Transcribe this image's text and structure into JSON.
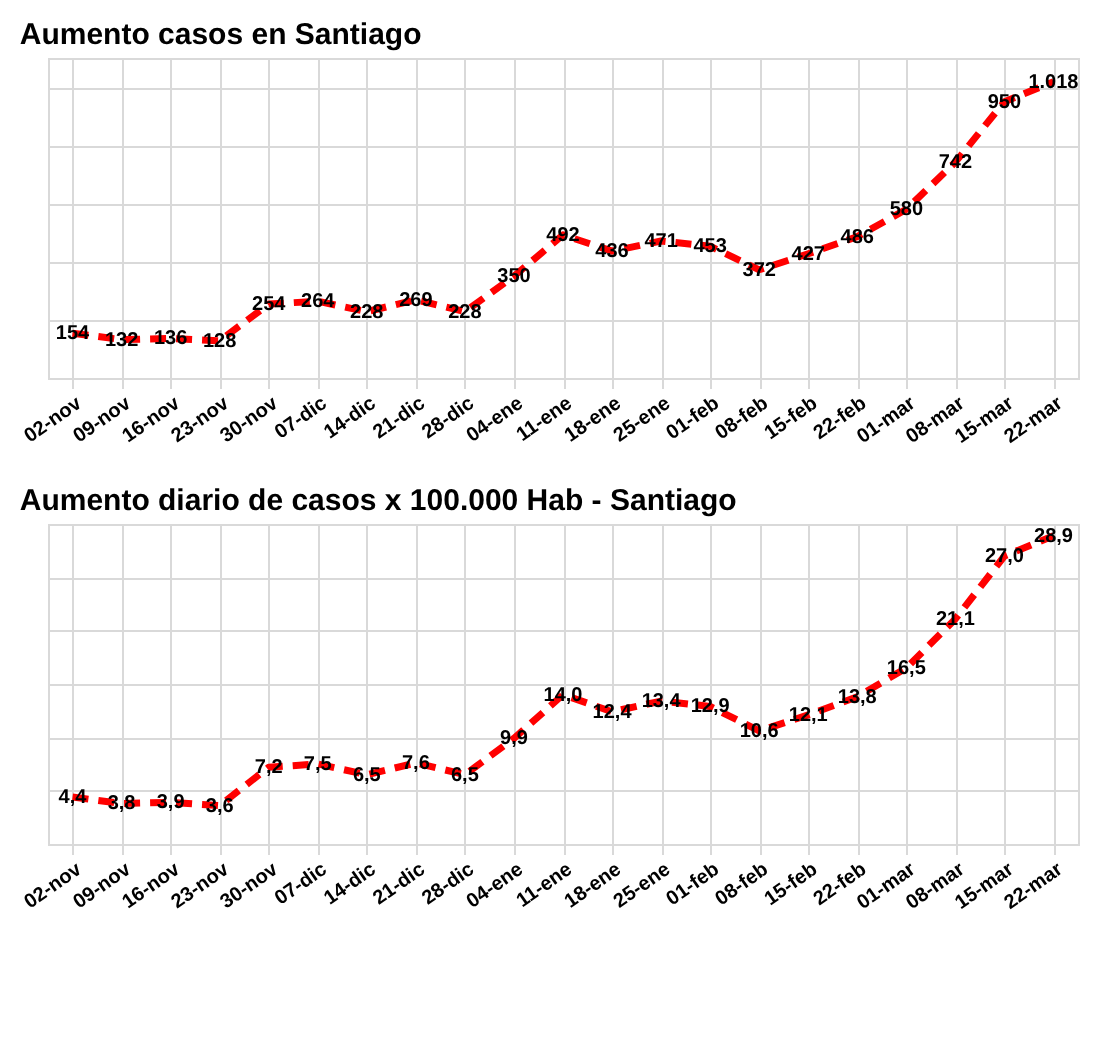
{
  "chart_data": [
    {
      "type": "line",
      "title": "Aumento casos en Santiago",
      "categories": [
        "02-nov",
        "09-nov",
        "16-nov",
        "23-nov",
        "30-nov",
        "07-dic",
        "14-dic",
        "21-dic",
        "28-dic",
        "04-ene",
        "11-ene",
        "18-ene",
        "25-ene",
        "01-feb",
        "08-feb",
        "15-feb",
        "22-feb",
        "01-mar",
        "08-mar",
        "15-mar",
        "22-mar"
      ],
      "series": [
        {
          "color": "#ff0000",
          "values": [
            154,
            132,
            136,
            128,
            254,
            264,
            228,
            269,
            228,
            350,
            492,
            436,
            471,
            453,
            372,
            427,
            486,
            580,
            742,
            950,
            1018
          ],
          "value_labels": [
            "154",
            "132",
            "136",
            "128",
            "254",
            "264",
            "228",
            "269",
            "228",
            "350",
            "492",
            "436",
            "471",
            "453",
            "372",
            "427",
            "486",
            "580",
            "742",
            "950",
            "1.018"
          ]
        }
      ],
      "tick_labels": "x",
      "grid": true,
      "line_style": "dashed",
      "marker": "none",
      "legend": false
    },
    {
      "type": "line",
      "title": "Aumento diario de casos x 100.000 Hab - Santiago",
      "categories": [
        "02-nov",
        "09-nov",
        "16-nov",
        "23-nov",
        "30-nov",
        "07-dic",
        "14-dic",
        "21-dic",
        "28-dic",
        "04-ene",
        "11-ene",
        "18-ene",
        "25-ene",
        "01-feb",
        "08-feb",
        "15-feb",
        "22-feb",
        "01-mar",
        "08-mar",
        "15-mar",
        "22-mar"
      ],
      "series": [
        {
          "color": "#ff0000",
          "values": [
            4.4,
            3.8,
            3.9,
            3.6,
            7.2,
            7.5,
            6.5,
            7.6,
            6.5,
            9.9,
            14.0,
            12.4,
            13.4,
            12.9,
            10.6,
            12.1,
            13.8,
            16.5,
            21.1,
            27.0,
            28.9
          ],
          "value_labels": [
            "4,4",
            "3,8",
            "3,9",
            "3,6",
            "7,2",
            "7,5",
            "6,5",
            "7,6",
            "6,5",
            "9,9",
            "14,0",
            "12,4",
            "13,4",
            "12,9",
            "10,6",
            "12,1",
            "13,8",
            "16,5",
            "21,1",
            "27,0",
            "28,9"
          ]
        }
      ],
      "tick_labels": "x",
      "grid": true,
      "line_style": "dashed",
      "marker": "none",
      "legend": false
    }
  ]
}
